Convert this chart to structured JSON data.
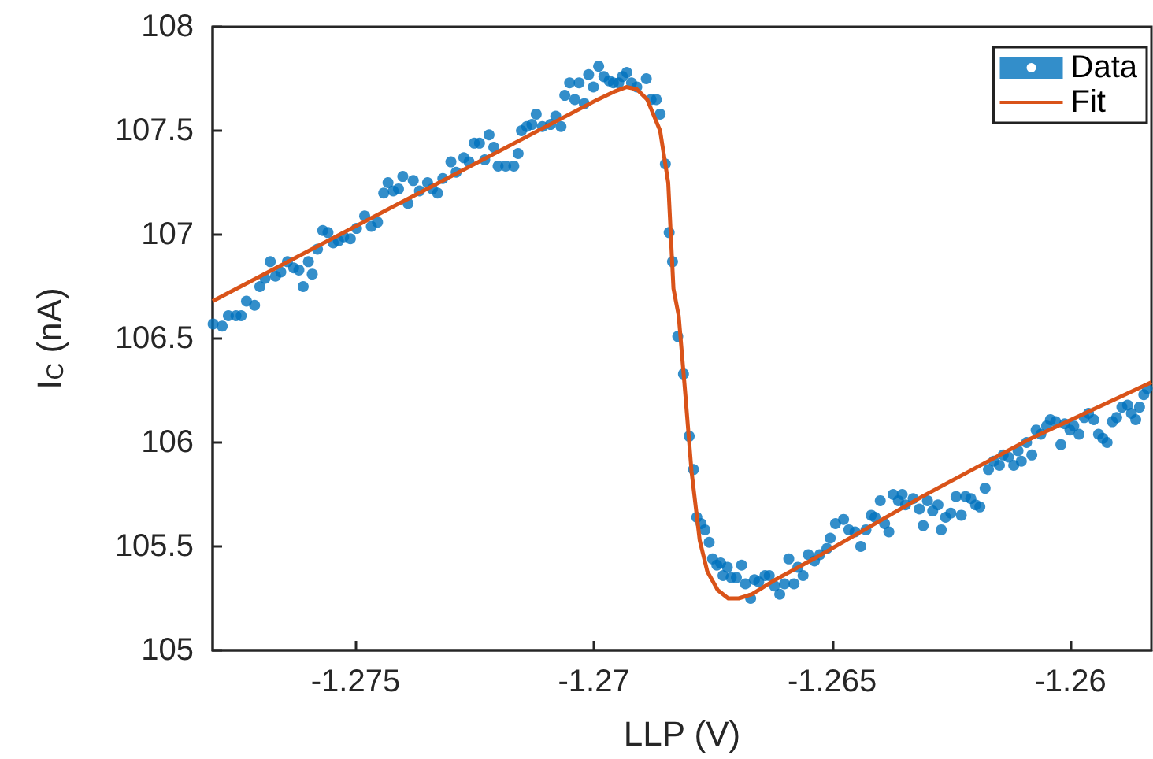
{
  "chart_data": {
    "type": "scatter",
    "xlabel": "LLP (V)",
    "ylabel": "I$_{C}$ (nA)",
    "xlim": [
      -1.278,
      -1.2583
    ],
    "xticks": [
      -1.275,
      -1.27,
      -1.265,
      -1.26
    ],
    "ylim": [
      105,
      108
    ],
    "yticks": [
      105,
      105.5,
      106,
      106.5,
      107,
      107.5,
      108
    ],
    "grid": false,
    "legend": "top right",
    "series": [
      {
        "name": "Data",
        "color": "#0072bd",
        "marker": "circle",
        "x": [
          -1.27799,
          -1.2778,
          -1.27767,
          -1.27751,
          -1.2774,
          -1.27729,
          -1.27712,
          -1.27701,
          -1.2769,
          -1.27679,
          -1.27668,
          -1.27657,
          -1.27643,
          -1.2763,
          -1.27619,
          -1.2761,
          -1.27599,
          -1.27591,
          -1.2758,
          -1.27569,
          -1.27558,
          -1.27547,
          -1.27536,
          -1.27525,
          -1.27511,
          -1.27498,
          -1.27481,
          -1.27467,
          -1.27454,
          -1.27441,
          -1.27432,
          -1.27421,
          -1.2741,
          -1.27401,
          -1.2739,
          -1.27379,
          -1.27366,
          -1.27349,
          -1.27339,
          -1.27328,
          -1.27317,
          -1.273,
          -1.27289,
          -1.27273,
          -1.27262,
          -1.27251,
          -1.2724,
          -1.27229,
          -1.2722,
          -1.2721,
          -1.27201,
          -1.27185,
          -1.27168,
          -1.27159,
          -1.27152,
          -1.27141,
          -1.2713,
          -1.27121,
          -1.27108,
          -1.27091,
          -1.2708,
          -1.27069,
          -1.27061,
          -1.27051,
          -1.2704,
          -1.27031,
          -1.2702,
          -1.27011,
          -1.27001,
          -1.2699,
          -1.26979,
          -1.26968,
          -1.26959,
          -1.26948,
          -1.2694,
          -1.26931,
          -1.26921,
          -1.2691,
          -1.2689,
          -1.2688,
          -1.26869,
          -1.26861,
          -1.2685,
          -1.26842,
          -1.26835,
          -1.26824,
          -1.26812,
          -1.268,
          -1.26791,
          -1.26784,
          -1.26775,
          -1.26767,
          -1.26758,
          -1.26751,
          -1.26742,
          -1.26734,
          -1.26729,
          -1.2672,
          -1.26712,
          -1.26701,
          -1.2669,
          -1.26682,
          -1.26671,
          -1.26663,
          -1.26654,
          -1.26641,
          -1.26632,
          -1.26621,
          -1.2661,
          -1.266,
          -1.26591,
          -1.2658,
          -1.26572,
          -1.26561,
          -1.2655,
          -1.26537,
          -1.26526,
          -1.26511,
          -1.26504,
          -1.26493,
          -1.26476,
          -1.26465,
          -1.26452,
          -1.2644,
          -1.26429,
          -1.26418,
          -1.2641,
          -1.26399,
          -1.2639,
          -1.26381,
          -1.26372,
          -1.26361,
          -1.26353,
          -1.26346,
          -1.2633,
          -1.26317,
          -1.26309,
          -1.263,
          -1.26289,
          -1.26278,
          -1.26271,
          -1.26262,
          -1.26251,
          -1.2624,
          -1.26229,
          -1.2622,
          -1.26209,
          -1.26199,
          -1.2619,
          -1.26179,
          -1.26172,
          -1.26161,
          -1.26149,
          -1.26141,
          -1.2613,
          -1.26119,
          -1.2611,
          -1.26103,
          -1.26092,
          -1.26081,
          -1.26072,
          -1.26062,
          -1.2605,
          -1.26042,
          -1.26031,
          -1.2602,
          -1.26012,
          -1.26001,
          -1.25993,
          -1.25982,
          -1.25971,
          -1.25962,
          -1.25951,
          -1.25941,
          -1.25932,
          -1.25923,
          -1.25912,
          -1.25903,
          -1.25892,
          -1.2588,
          -1.25872,
          -1.25863,
          -1.25855,
          -1.25846,
          -1.25839
        ],
        "values": [
          106.57,
          106.56,
          106.61,
          106.61,
          106.61,
          106.68,
          106.66,
          106.75,
          106.79,
          106.87,
          106.8,
          106.82,
          106.87,
          106.84,
          106.83,
          106.75,
          106.87,
          106.81,
          106.93,
          107.02,
          107.01,
          106.96,
          106.97,
          106.99,
          106.98,
          107.03,
          107.09,
          107.04,
          107.06,
          107.2,
          107.25,
          107.21,
          107.22,
          107.28,
          107.15,
          107.26,
          107.21,
          107.25,
          107.22,
          107.2,
          107.27,
          107.35,
          107.3,
          107.37,
          107.35,
          107.44,
          107.44,
          107.36,
          107.48,
          107.42,
          107.33,
          107.33,
          107.33,
          107.39,
          107.5,
          107.52,
          107.53,
          107.58,
          107.52,
          107.53,
          107.57,
          107.52,
          107.67,
          107.73,
          107.65,
          107.73,
          107.63,
          107.77,
          107.71,
          107.81,
          107.76,
          107.74,
          107.73,
          107.73,
          107.76,
          107.78,
          107.73,
          107.71,
          107.75,
          107.65,
          107.65,
          107.58,
          107.34,
          107.01,
          106.87,
          106.51,
          106.33,
          106.03,
          105.87,
          105.64,
          105.61,
          105.58,
          105.52,
          105.44,
          105.41,
          105.42,
          105.36,
          105.4,
          105.35,
          105.35,
          105.41,
          105.32,
          105.25,
          105.34,
          105.33,
          105.36,
          105.36,
          105.31,
          105.27,
          105.32,
          105.44,
          105.32,
          105.4,
          105.36,
          105.46,
          105.43,
          105.46,
          105.49,
          105.54,
          105.61,
          105.63,
          105.58,
          105.57,
          105.5,
          105.58,
          105.65,
          105.64,
          105.72,
          105.61,
          105.57,
          105.75,
          105.72,
          105.75,
          105.7,
          105.73,
          105.68,
          105.6,
          105.72,
          105.67,
          105.7,
          105.58,
          105.64,
          105.66,
          105.74,
          105.65,
          105.74,
          105.73,
          105.7,
          105.69,
          105.78,
          105.87,
          105.91,
          105.89,
          105.94,
          105.93,
          105.89,
          105.96,
          105.91,
          106.0,
          105.94,
          106.06,
          106.04,
          106.08,
          106.11,
          106.1,
          105.99,
          106.09,
          106.06,
          106.08,
          106.04,
          106.12,
          106.14,
          106.11,
          106.04,
          106.02,
          106.0,
          106.1,
          106.12,
          106.17,
          106.18,
          106.14,
          106.11,
          106.17,
          106.23,
          106.26
        ]
      },
      {
        "name": "Fit",
        "color": "#d95319",
        "type": "line",
        "marker": "none",
        "x": [
          -1.278,
          -1.26992,
          -1.26955,
          -1.26932,
          -1.2691,
          -1.26888,
          -1.26861,
          -1.26844,
          -1.26833,
          -1.26822,
          -1.26808,
          -1.26795,
          -1.26778,
          -1.26762,
          -1.2674,
          -1.26718,
          -1.26696,
          -1.26668,
          -1.26619,
          -1.26531,
          -1.26311,
          -1.26091,
          -1.2583
        ],
        "values": [
          106.68,
          107.65,
          107.69,
          107.71,
          107.7,
          107.65,
          107.5,
          107.25,
          106.74,
          106.61,
          106.23,
          105.86,
          105.53,
          105.38,
          105.29,
          105.25,
          105.25,
          105.27,
          105.34,
          105.45,
          105.74,
          106.01,
          106.29
        ]
      }
    ]
  }
}
